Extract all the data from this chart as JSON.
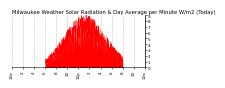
{
  "title": "Milwaukee Weather Solar Radiation & Day Average per Minute W/m2 (Today)",
  "bg_color": "#ffffff",
  "plot_bg_color": "#ffffff",
  "fill_color": "#ff0000",
  "grid_color": "#bbbbbb",
  "grid_style": "--",
  "ylim": [
    0,
    900
  ],
  "xlim": [
    0,
    1440
  ],
  "ytick_values": [
    0,
    100,
    200,
    300,
    400,
    500,
    600,
    700,
    800,
    900
  ],
  "ytick_labels": [
    "0",
    "1",
    "2",
    "3",
    "4",
    "5",
    "6",
    "7",
    "8",
    "9"
  ],
  "xtick_positions": [
    0,
    120,
    240,
    360,
    480,
    600,
    720,
    840,
    960,
    1080,
    1200,
    1320,
    1440
  ],
  "xtick_labels": [
    "12a",
    "2",
    "4",
    "6",
    "8",
    "10",
    "12p",
    "2",
    "4",
    "6",
    "8",
    "10",
    "12a"
  ],
  "title_fontsize": 3.8,
  "tick_fontsize": 3.0,
  "seed": 42
}
